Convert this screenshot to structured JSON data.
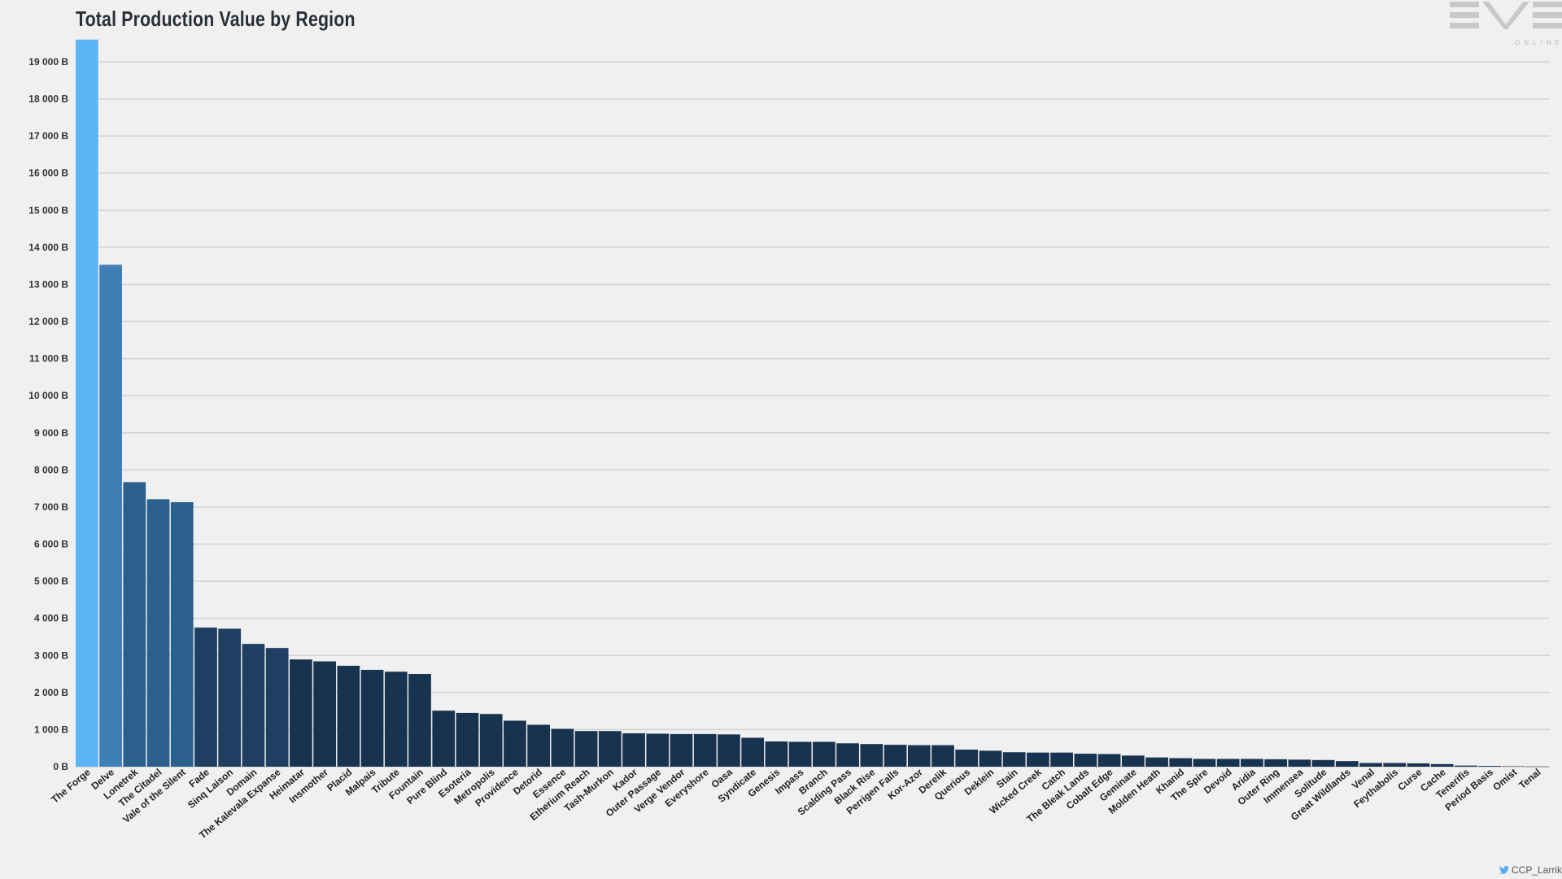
{
  "title": "Total Production Value by Region",
  "logo": {
    "text_main": "EVE",
    "text_sub": "ONLINE"
  },
  "credit": "CCP_Larrikin",
  "colors": {
    "background": "#f0f0f0",
    "gridline": "#d2d2d2",
    "bar_colors": [
      "#5ab4f5",
      "#3f7fb5",
      "#2b5f8c",
      "#1e3f62",
      "#183350"
    ]
  },
  "chart_data": {
    "type": "bar",
    "title": "Total Production Value by Region",
    "xlabel": "",
    "ylabel": "",
    "ylim": [
      0,
      19000
    ],
    "grid": true,
    "legend": "none",
    "yticks": [
      "0 B",
      "1 000 B",
      "2 000 B",
      "3 000 B",
      "4 000 B",
      "5 000 B",
      "6 000 B",
      "7 000 B",
      "8 000 B",
      "9 000 B",
      "10 000 B",
      "11 000 B",
      "12 000 B",
      "13 000 B",
      "14 000 B",
      "15 000 B",
      "16 000 B",
      "17 000 B",
      "18 000 B",
      "19 000 B"
    ],
    "categories": [
      "The Forge",
      "Delve",
      "Lonetrek",
      "The Citadel",
      "Vale of the Silent",
      "Fade",
      "Sinq Laison",
      "Domain",
      "The Kalevala Expanse",
      "Heimatar",
      "Insmother",
      "Placid",
      "Malpais",
      "Tribute",
      "Fountain",
      "Pure Blind",
      "Esoteria",
      "Metropolis",
      "Providence",
      "Detorid",
      "Essence",
      "Etherium Reach",
      "Tash-Murkon",
      "Kador",
      "Outer Passage",
      "Verge Vendor",
      "Everyshore",
      "Oasa",
      "Syndicate",
      "Genesis",
      "Impass",
      "Branch",
      "Scalding Pass",
      "Black Rise",
      "Perrigen Falls",
      "Kor-Azor",
      "Derelik",
      "Querious",
      "Deklein",
      "Stain",
      "Wicked Creek",
      "Catch",
      "The Bleak Lands",
      "Cobalt Edge",
      "Geminate",
      "Molden Heath",
      "Khanid",
      "The Spire",
      "Devoid",
      "Aridia",
      "Outer Ring",
      "Immensea",
      "Solitude",
      "Great Wildlands",
      "Venal",
      "Feythabolis",
      "Curse",
      "Cache",
      "Tenerifis",
      "Period Basis",
      "Omist",
      "Tenal"
    ],
    "values": [
      19600,
      13530,
      7670,
      7210,
      7130,
      3750,
      3720,
      3310,
      3200,
      2890,
      2840,
      2720,
      2610,
      2560,
      2500,
      1510,
      1450,
      1420,
      1240,
      1130,
      1020,
      960,
      960,
      900,
      890,
      880,
      880,
      870,
      780,
      680,
      670,
      670,
      630,
      610,
      590,
      580,
      580,
      460,
      430,
      390,
      380,
      380,
      350,
      340,
      300,
      250,
      230,
      210,
      210,
      210,
      200,
      190,
      180,
      150,
      100,
      100,
      90,
      70,
      30,
      20,
      10,
      5
    ]
  }
}
